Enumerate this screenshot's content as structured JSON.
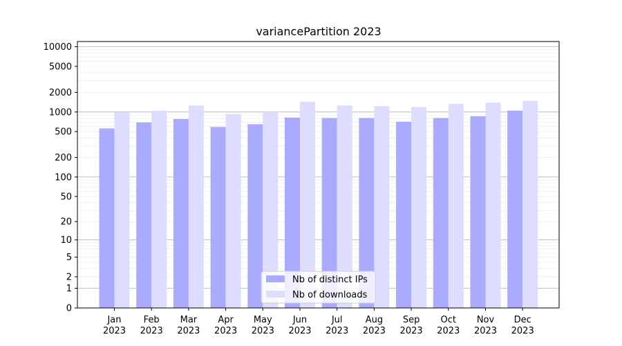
{
  "chart_data": {
    "type": "bar",
    "title": "variancePartition 2023",
    "xlabel": "",
    "ylabel": "",
    "yscale": "log(1+y)",
    "ylim": [
      0,
      12000
    ],
    "grid": "horizontal",
    "legend_position": "bottom-center",
    "categories": [
      "Jan\n2023",
      "Feb\n2023",
      "Mar\n2023",
      "Apr\n2023",
      "May\n2023",
      "Jun\n2023",
      "Jul\n2023",
      "Aug\n2023",
      "Sep\n2023",
      "Oct\n2023",
      "Nov\n2023",
      "Dec\n2023"
    ],
    "y_ticks": [
      0,
      1,
      2,
      5,
      10,
      20,
      50,
      100,
      200,
      500,
      1000,
      2000,
      5000,
      10000
    ],
    "series": [
      {
        "name": "Nb of distinct IPs",
        "color": "#aaaaff",
        "values": [
          560,
          690,
          780,
          590,
          650,
          820,
          810,
          810,
          710,
          810,
          860,
          1050
        ]
      },
      {
        "name": "Nb of downloads",
        "color": "#ddddff",
        "values": [
          990,
          1050,
          1260,
          930,
          1000,
          1430,
          1260,
          1230,
          1190,
          1330,
          1390,
          1480
        ]
      }
    ]
  }
}
